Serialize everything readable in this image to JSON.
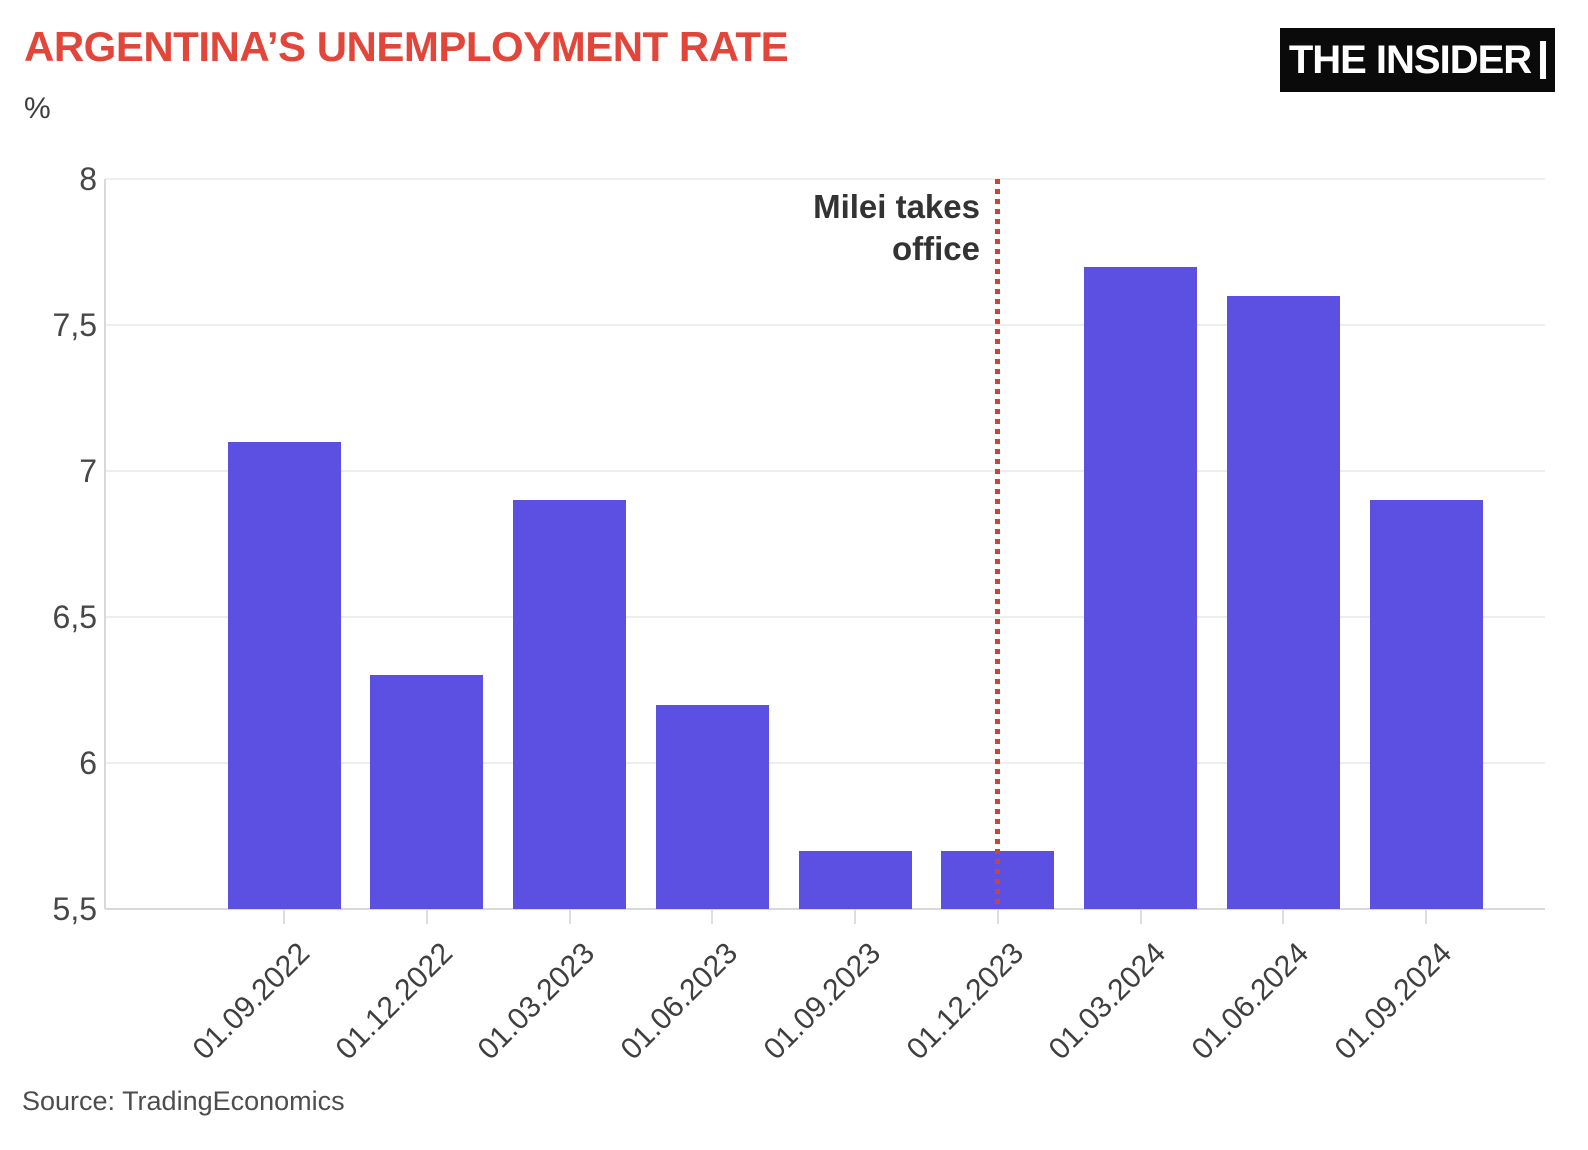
{
  "header": {
    "title": "ARGENTINA’S UNEMPLOYMENT RATE",
    "unit_label": "%",
    "logo_text": "THE INSIDER"
  },
  "annotation": {
    "lines": [
      "Milei takes",
      "office"
    ],
    "full_text": "Milei takes office",
    "at_category": "01.12.2023"
  },
  "footer": {
    "source": "Source: TradingEconomics"
  },
  "colors": {
    "bar": "#5c50e2",
    "title": "#e2463b",
    "annotation_line": "#c7463c",
    "logo_background": "#0a0a0a",
    "logo_text": "#ffffff",
    "gridline": "#eeeeee",
    "axis_line": "#d9d9d9"
  },
  "chart_data": {
    "type": "bar",
    "title": "ARGENTINA’S UNEMPLOYMENT RATE",
    "ylabel": "%",
    "xlabel": "",
    "categories": [
      "01.09.2022",
      "01.12.2022",
      "01.03.2023",
      "01.06.2023",
      "01.09.2023",
      "01.12.2023",
      "01.03.2024",
      "01.06.2024",
      "01.09.2024"
    ],
    "values": [
      7.1,
      6.3,
      6.9,
      6.2,
      5.7,
      5.7,
      7.7,
      7.6,
      6.9
    ],
    "ylim": [
      5.5,
      8
    ],
    "yticks": [
      {
        "value": 5.5,
        "label": "5,5"
      },
      {
        "value": 6,
        "label": "6"
      },
      {
        "value": 6.5,
        "label": "6,5"
      },
      {
        "value": 7,
        "label": "7"
      },
      {
        "value": 7.5,
        "label": "7,5"
      },
      {
        "value": 8,
        "label": "8"
      }
    ],
    "grid": true,
    "legend": null,
    "annotation": {
      "label": "Milei takes office",
      "at_category": "01.12.2023"
    }
  }
}
